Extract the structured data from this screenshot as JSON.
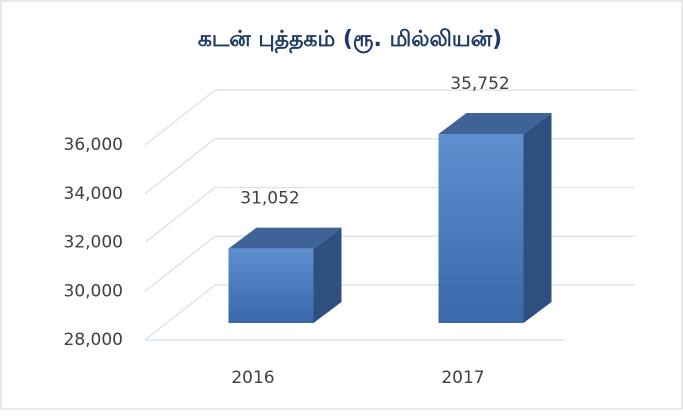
{
  "chart_data": {
    "type": "bar3d",
    "title": "கடன் புத்தகம் (ரூ. மில்லியன்)",
    "categories": [
      "2016",
      "2017"
    ],
    "values": [
      31052,
      35752
    ],
    "value_labels": [
      "31,052",
      "35,752"
    ],
    "color": "#4a7dc2",
    "ylim": [
      28000,
      36000
    ],
    "yticks": [
      {
        "value": 28000,
        "label": "28,000"
      },
      {
        "value": 30000,
        "label": "30,000"
      },
      {
        "value": 32000,
        "label": "32,000"
      },
      {
        "value": 34000,
        "label": "34,000"
      },
      {
        "value": 36000,
        "label": "36,000"
      }
    ],
    "grid": true
  }
}
